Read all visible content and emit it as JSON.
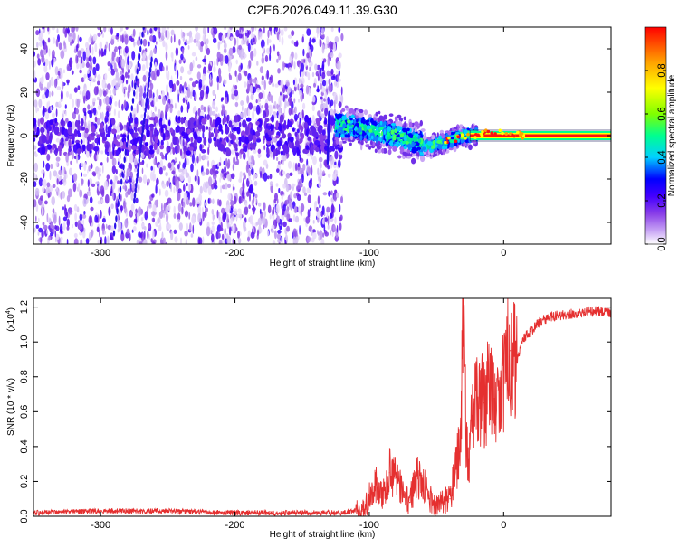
{
  "chart_data": [
    {
      "type": "heatmap",
      "title": "C2E6.2026.049.11.39.G30",
      "xlabel": "Height of straight line (km)",
      "ylabel": "Frequency (Hz)",
      "xlim": [
        -350,
        80
      ],
      "ylim": [
        -50,
        50
      ],
      "xticks": [
        -300,
        -200,
        -100,
        0
      ],
      "xticklabels": [
        "-300",
        "-200",
        "-100",
        "0"
      ],
      "yticks": [
        -40,
        -20,
        0,
        20,
        40
      ],
      "yticklabels": [
        "-40",
        "-20",
        "0",
        "20",
        "40"
      ],
      "noise_region_x": [
        -350,
        -120
      ],
      "centerline": [
        {
          "x": -125,
          "y": 5
        },
        {
          "x": -110,
          "y": 4
        },
        {
          "x": -95,
          "y": 2
        },
        {
          "x": -80,
          "y": 0
        },
        {
          "x": -65,
          "y": -3
        },
        {
          "x": -55,
          "y": -5
        },
        {
          "x": -45,
          "y": -3
        },
        {
          "x": -35,
          "y": -1
        },
        {
          "x": -25,
          "y": 0
        },
        {
          "x": -15,
          "y": 1
        },
        {
          "x": 0,
          "y": 1
        },
        {
          "x": 20,
          "y": 0
        },
        {
          "x": 80,
          "y": 0
        }
      ],
      "colorbar": {
        "label": "Normalized spectral amplitude",
        "range": [
          0,
          1
        ],
        "ticks": [
          0.0,
          0.2,
          0.4,
          0.6,
          0.8
        ],
        "ticklabels": [
          "0.0",
          "0.2",
          "0.4",
          "0.6",
          "0.8"
        ],
        "colors": [
          "#ffffff",
          "#c9a6f5",
          "#8a3fe8",
          "#4400ff",
          "#0000ff",
          "#00d0ff",
          "#00ff90",
          "#80ff00",
          "#ffff00",
          "#ffa000",
          "#ff0000"
        ]
      }
    },
    {
      "type": "line",
      "xlabel": "Height of straight line (km)",
      "ylabel": "SNR (10 * v/v)",
      "yunit": "(x10",
      "yunit_exp": "4",
      "yunit_close": ")",
      "xlim": [
        -350,
        80
      ],
      "ylim": [
        0,
        1.25
      ],
      "xticks": [
        -300,
        -200,
        -100,
        0
      ],
      "xticklabels": [
        "-300",
        "-200",
        "-100",
        "0"
      ],
      "yticks": [
        0.0,
        0.2,
        0.4,
        0.6,
        0.8,
        1.0,
        1.2
      ],
      "yticklabels": [
        "0.0",
        "0.2",
        "0.4",
        "0.6",
        "0.8",
        "1.0",
        "1.2"
      ],
      "color": "#e53030",
      "series": [
        {
          "name": "SNR",
          "x": [
            -350,
            -300,
            -250,
            -200,
            -150,
            -120,
            -105,
            -95,
            -90,
            -85,
            -80,
            -75,
            -70,
            -65,
            -60,
            -55,
            -50,
            -45,
            -40,
            -35,
            -32,
            -30,
            -28,
            -26,
            -24,
            -20,
            -15,
            -10,
            -5,
            0,
            5,
            10,
            15,
            20,
            25,
            30,
            40,
            50,
            60,
            70,
            80
          ],
          "y": [
            0.02,
            0.03,
            0.03,
            0.02,
            0.02,
            0.02,
            0.04,
            0.18,
            0.12,
            0.25,
            0.22,
            0.15,
            0.08,
            0.22,
            0.2,
            0.1,
            0.06,
            0.08,
            0.1,
            0.3,
            0.4,
            1.2,
            0.5,
            0.25,
            0.55,
            0.7,
            0.65,
            0.75,
            0.72,
            0.8,
            0.95,
            0.9,
            1.02,
            1.06,
            1.1,
            1.13,
            1.15,
            1.16,
            1.17,
            1.18,
            1.16
          ]
        }
      ]
    }
  ]
}
